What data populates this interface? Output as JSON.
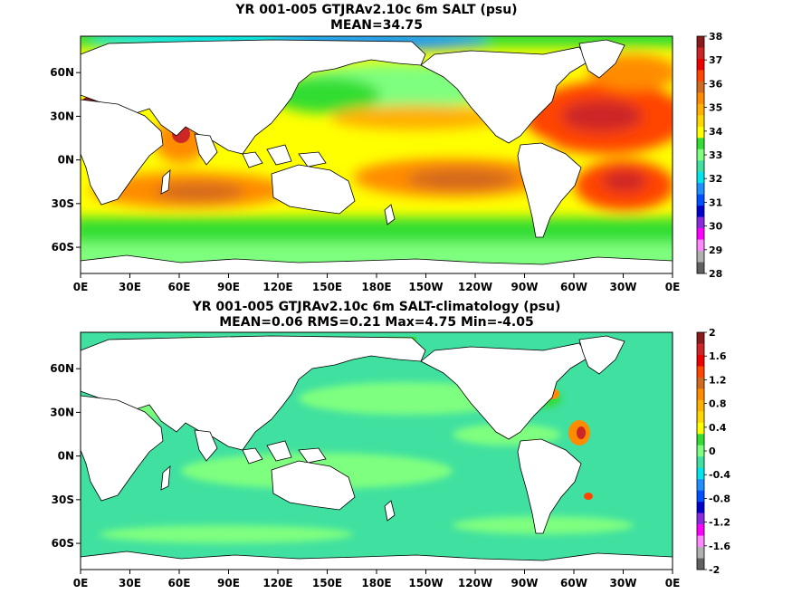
{
  "chart_data": [
    {
      "type": "heatmap",
      "title": "YR 001-005 GTJRAv2.10c 6m SALT (psu)",
      "subtitle": "MEAN=34.75",
      "x_ticks": [
        "0E",
        "30E",
        "60E",
        "90E",
        "120E",
        "150E",
        "180E",
        "150W",
        "120W",
        "90W",
        "60W",
        "30W",
        "0E"
      ],
      "y_ticks": [
        "60N",
        "30N",
        "0N",
        "30S",
        "60S"
      ],
      "colorbar": {
        "ticks": [
          "38",
          "37",
          "36",
          "35",
          "34",
          "33",
          "32",
          "31",
          "30",
          "29",
          "28"
        ],
        "colors": [
          "#8b1a1a",
          "#cd2626",
          "#ee0000",
          "#ff4500",
          "#d2691e",
          "#ff8c00",
          "#ffb000",
          "#ffd700",
          "#ffff00",
          "#33dd33",
          "#7fff7f",
          "#40e0a0",
          "#00e5ee",
          "#1e90ff",
          "#0050ff",
          "#0000cd",
          "#8a2be2",
          "#ff00ff",
          "#ff88ff",
          "#b0b0b0",
          "#606060"
        ]
      }
    },
    {
      "type": "heatmap",
      "title": "YR 001-005 GTJRAv2.10c 6m SALT-climatology (psu)",
      "subtitle": "MEAN=0.06   RMS=0.21   Max=4.75   Min=-4.05",
      "x_ticks": [
        "0E",
        "30E",
        "60E",
        "90E",
        "120E",
        "150E",
        "180E",
        "150W",
        "120W",
        "90W",
        "60W",
        "30W",
        "0E"
      ],
      "y_ticks": [
        "60N",
        "30N",
        "0N",
        "30S",
        "60S"
      ],
      "colorbar": {
        "ticks": [
          "2",
          "1.6",
          "1.2",
          "0.8",
          "0.4",
          "0",
          "-0.4",
          "-0.8",
          "-1.2",
          "-1.6",
          "-2"
        ],
        "colors": [
          "#8b1a1a",
          "#cd2626",
          "#ee0000",
          "#ff4500",
          "#d2691e",
          "#ff8c00",
          "#ffb000",
          "#ffd700",
          "#ffff00",
          "#33dd33",
          "#7fff7f",
          "#40e0a0",
          "#00e5ee",
          "#1e90ff",
          "#0050ff",
          "#0000cd",
          "#8a2be2",
          "#ff00ff",
          "#ff88ff",
          "#b0b0b0",
          "#606060"
        ]
      }
    }
  ],
  "colors": {
    "land": "#ffffff",
    "coast": "#000000"
  }
}
